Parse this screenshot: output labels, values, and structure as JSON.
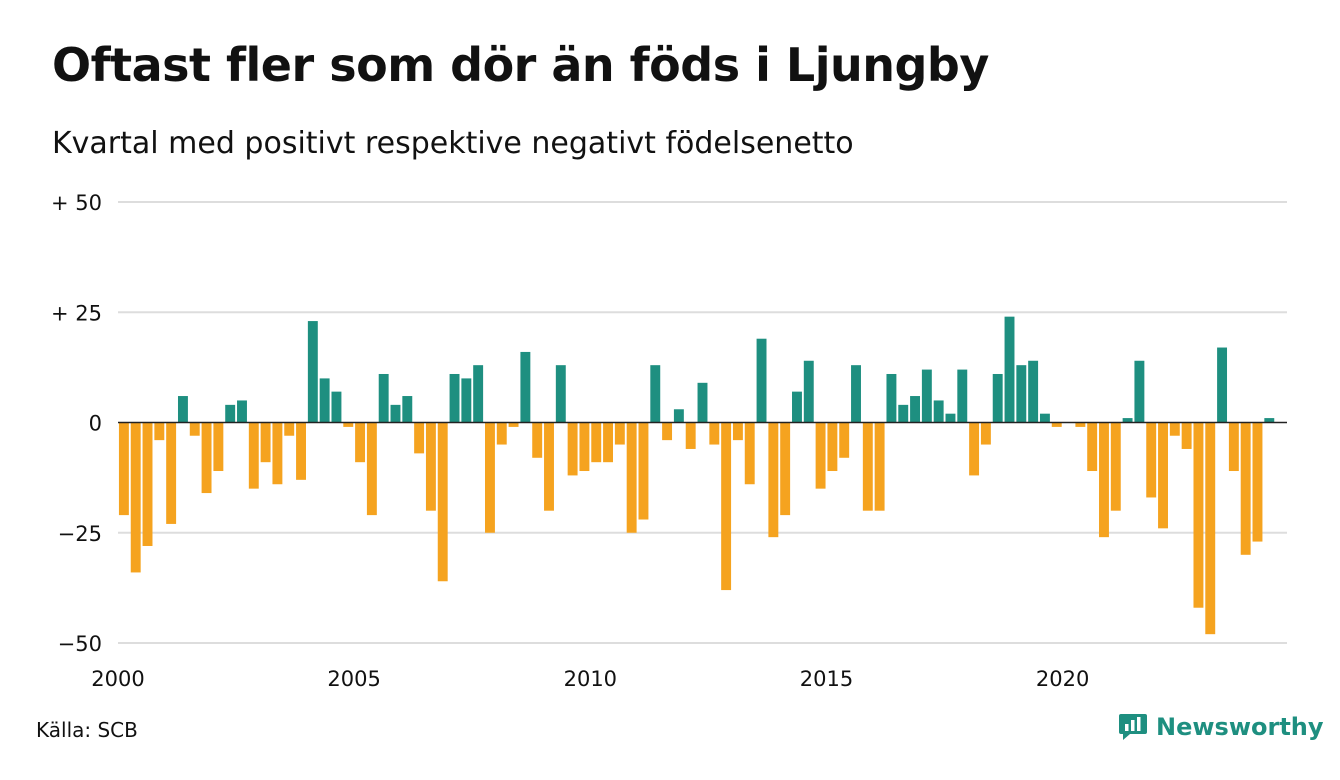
{
  "title": "Oftast fler som dör än föds i Ljungby",
  "subtitle": "Kvartal med positivt respektive negativt födelsenetto",
  "source": "Källa: SCB",
  "brand": "Newsworthy",
  "colors": {
    "positive": "#1e8f80",
    "negative": "#f5a31f",
    "grid": "#dddddd",
    "brand": "#1e8f80"
  },
  "chart_data": {
    "type": "bar",
    "title": "Oftast fler som dör än föds i Ljungby",
    "subtitle": "Kvartal med positivt respektive negativt födelsenetto",
    "xlabel": "",
    "ylabel": "",
    "ylim": [
      -50,
      50
    ],
    "xlim": [
      2000,
      2024.75
    ],
    "grid": true,
    "legend": "none",
    "y_ticks": [
      {
        "value": 50,
        "label": "+ 50"
      },
      {
        "value": 25,
        "label": "+ 25"
      },
      {
        "value": 0,
        "label": "0"
      },
      {
        "value": -25,
        "label": "−25"
      },
      {
        "value": -50,
        "label": "−50"
      }
    ],
    "x_ticks": [
      {
        "value": 2000,
        "label": "2000"
      },
      {
        "value": 2005,
        "label": "2005"
      },
      {
        "value": 2010,
        "label": "2010"
      },
      {
        "value": 2015,
        "label": "2015"
      },
      {
        "value": 2020,
        "label": "2020"
      }
    ],
    "categories": [
      "2000 K1",
      "2000 K2",
      "2000 K3",
      "2000 K4",
      "2001 K1",
      "2001 K2",
      "2001 K3",
      "2001 K4",
      "2002 K1",
      "2002 K2",
      "2002 K3",
      "2002 K4",
      "2003 K1",
      "2003 K2",
      "2003 K3",
      "2003 K4",
      "2004 K1",
      "2004 K2",
      "2004 K3",
      "2004 K4",
      "2005 K1",
      "2005 K2",
      "2005 K3",
      "2005 K4",
      "2006 K1",
      "2006 K2",
      "2006 K3",
      "2006 K4",
      "2007 K1",
      "2007 K2",
      "2007 K3",
      "2007 K4",
      "2008 K1",
      "2008 K2",
      "2008 K3",
      "2008 K4",
      "2009 K1",
      "2009 K2",
      "2009 K3",
      "2009 K4",
      "2010 K1",
      "2010 K2",
      "2010 K3",
      "2010 K4",
      "2011 K1",
      "2011 K2",
      "2011 K3",
      "2011 K4",
      "2012 K1",
      "2012 K2",
      "2012 K3",
      "2012 K4",
      "2013 K1",
      "2013 K2",
      "2013 K3",
      "2013 K4",
      "2014 K1",
      "2014 K2",
      "2014 K3",
      "2014 K4",
      "2015 K1",
      "2015 K2",
      "2015 K3",
      "2015 K4",
      "2016 K1",
      "2016 K2",
      "2016 K3",
      "2016 K4",
      "2017 K1",
      "2017 K2",
      "2017 K3",
      "2017 K4",
      "2018 K1",
      "2018 K2",
      "2018 K3",
      "2018 K4",
      "2019 K1",
      "2019 K2",
      "2019 K3",
      "2019 K4",
      "2020 K1",
      "2020 K2",
      "2020 K3",
      "2020 K4",
      "2021 K1",
      "2021 K2",
      "2021 K3",
      "2021 K4",
      "2022 K1",
      "2022 K2",
      "2022 K3",
      "2022 K4",
      "2023 K1",
      "2023 K2",
      "2023 K3",
      "2023 K4",
      "2024 K1",
      "2024 K2",
      "2024 K3"
    ],
    "values": [
      -21,
      -34,
      -28,
      -4,
      -23,
      6,
      -3,
      -16,
      -11,
      4,
      5,
      -15,
      -9,
      -14,
      -3,
      -13,
      23,
      10,
      7,
      -1,
      -9,
      -21,
      11,
      4,
      6,
      -7,
      -20,
      -36,
      11,
      10,
      13,
      -25,
      -5,
      -1,
      16,
      -8,
      -20,
      13,
      -12,
      -11,
      -9,
      -9,
      -5,
      -25,
      -22,
      13,
      -4,
      3,
      -6,
      9,
      -5,
      -38,
      -4,
      -14,
      19,
      -26,
      -21,
      7,
      14,
      -15,
      -11,
      -8,
      13,
      -20,
      -20,
      11,
      4,
      6,
      12,
      5,
      2,
      12,
      -12,
      -5,
      11,
      24,
      13,
      14,
      2,
      -1,
      0,
      -1,
      -11,
      -26,
      -20,
      1,
      14,
      -17,
      -24,
      -3,
      -6,
      -42,
      -48,
      17,
      -11,
      -30,
      -27,
      1,
      0
    ]
  }
}
